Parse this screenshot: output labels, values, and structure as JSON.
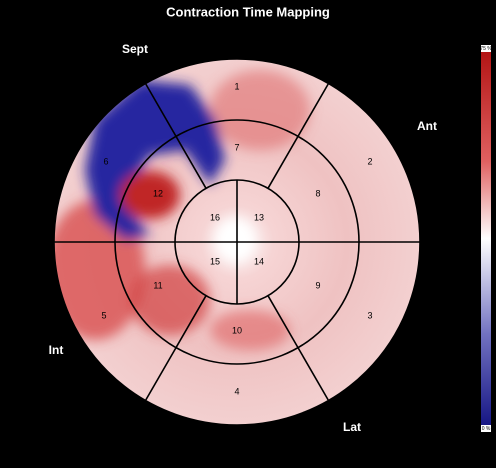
{
  "title": "Contraction Time Mapping",
  "wall_labels": [
    "Sept",
    "Ant",
    "Int",
    "Lat"
  ],
  "segments": [
    "1",
    "2",
    "3",
    "4",
    "5",
    "6",
    "7",
    "8",
    "9",
    "10",
    "11",
    "12",
    "13",
    "14",
    "15",
    "16"
  ],
  "colorbar": {
    "max_label": "75 %",
    "min_label": "0 %"
  }
}
